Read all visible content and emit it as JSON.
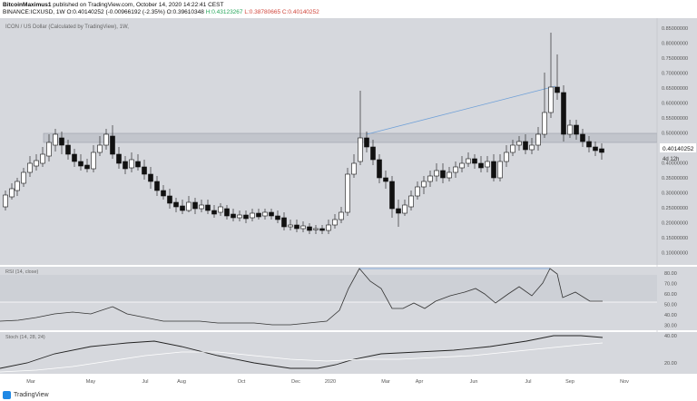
{
  "header": {
    "author": "BitcoinMaximus1",
    "published": "published on TradingView.com, October 14, 2020 14:22:41 CEST",
    "symbol": "BINANCE:ICXUSD, 1W",
    "open": "O:0.40140252",
    "change": "(-0.00966192 (-2.35%)",
    "open2": "O:0.39610348",
    "high": "H:0.43123267",
    "low": "L:0.38780665",
    "close": "C:0.40140252"
  },
  "main_pane": {
    "legend": "ICON / US Dollar (Calculated by TradingView), 1W, ",
    "price_axis": [
      "0.85000000",
      "0.80000000",
      "0.75000000",
      "0.70000000",
      "0.65000000",
      "0.60000000",
      "0.55000000",
      "0.50000000",
      "0.45000000",
      "0.40000000",
      "0.35000000",
      "0.30000000",
      "0.25000000",
      "0.20000000",
      "0.15000000",
      "0.10000000"
    ],
    "current_price_label": "0.40140252",
    "countdown_label": "4d 12h"
  },
  "rsi_pane": {
    "legend": "RSI (14, close)",
    "axis": [
      "80.00",
      "70.00",
      "60.00",
      "50.00",
      "40.00",
      "30.00"
    ]
  },
  "macd_pane": {
    "legend": "Stoch (14, 28, 24)",
    "axis": [
      "40.00",
      "20.00"
    ]
  },
  "time_axis": [
    "Mar",
    "May",
    "Jul",
    "Aug",
    "Oct",
    "Dec",
    "2020",
    "Mar",
    "Apr",
    "Jun",
    "Jul",
    "Sep",
    "Nov"
  ],
  "footer": {
    "brand": "TradingView"
  },
  "colors": {
    "pane_bg": "#d6d8dd",
    "candle_up": "#ffffff",
    "candle_down": "#111111",
    "trendline": "#6fa0d8"
  }
}
